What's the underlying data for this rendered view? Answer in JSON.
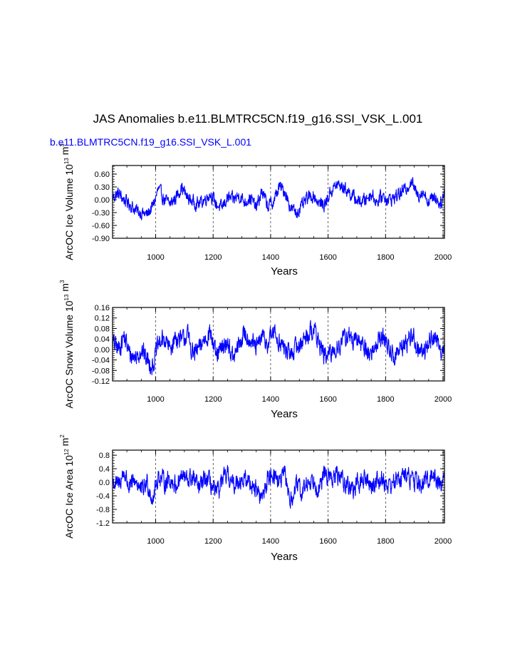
{
  "title": "JAS Anomalies b.e11.BLMTRC5CN.f19_g16.SSI_VSK_L.001",
  "subtitle": "b.e11.BLMTRC5CN.f19_g16.SSI_VSK_L.001",
  "colors": {
    "series": "#0000ff",
    "axis": "#000000",
    "grid": "#000000",
    "subtitle": "#0000ff"
  },
  "chart_data": [
    {
      "type": "line",
      "ylabel": "ArcOC Ice Volume 10^13 m^3",
      "xlabel": "Years",
      "xlim": [
        850,
        2005
      ],
      "ylim": [
        -0.9,
        0.8
      ],
      "xticks": [
        1000,
        1200,
        1400,
        1600,
        1800,
        2000
      ],
      "yticks": [
        -0.9,
        -0.6,
        -0.3,
        0.0,
        0.3,
        0.6
      ],
      "ytick_labels": [
        "-0.90",
        "-0.60",
        "-0.30",
        "0.00",
        "0.30",
        "0.60"
      ],
      "xgrid": "dashed",
      "series": [
        {
          "x": [
            850,
            870,
            890,
            910,
            930,
            950,
            970,
            990,
            1010,
            1030,
            1050,
            1070,
            1090,
            1110,
            1130,
            1150,
            1170,
            1190,
            1210,
            1230,
            1250,
            1270,
            1290,
            1310,
            1330,
            1350,
            1370,
            1390,
            1410,
            1430,
            1450,
            1470,
            1490,
            1510,
            1530,
            1550,
            1570,
            1590,
            1610,
            1630,
            1650,
            1670,
            1690,
            1710,
            1730,
            1750,
            1770,
            1790,
            1810,
            1830,
            1850,
            1870,
            1890,
            1910,
            1930,
            1950,
            1970,
            1990,
            2005
          ],
          "values": [
            0.05,
            0.15,
            0.0,
            -0.1,
            -0.25,
            -0.3,
            -0.35,
            -0.15,
            0.25,
            0.0,
            -0.1,
            0.05,
            0.3,
            0.05,
            -0.05,
            -0.1,
            0.0,
            0.15,
            -0.1,
            -0.2,
            0.05,
            0.0,
            0.1,
            -0.05,
            0.05,
            -0.2,
            0.2,
            -0.15,
            -0.05,
            0.3,
            0.2,
            -0.2,
            -0.3,
            -0.15,
            0.05,
            0.1,
            -0.1,
            -0.1,
            0.2,
            0.35,
            0.3,
            0.2,
            0.05,
            -0.05,
            0.0,
            0.15,
            -0.05,
            0.1,
            0.0,
            0.05,
            0.15,
            0.25,
            0.45,
            0.1,
            0.2,
            -0.05,
            0.1,
            -0.1,
            0.15
          ]
        }
      ]
    },
    {
      "type": "line",
      "ylabel": "ArcOC Snow Volume 10^13 m^3",
      "xlabel": "Years",
      "xlim": [
        850,
        2005
      ],
      "ylim": [
        -0.12,
        0.16
      ],
      "xticks": [
        1000,
        1200,
        1400,
        1600,
        1800,
        2000
      ],
      "yticks": [
        -0.12,
        -0.08,
        -0.04,
        0.0,
        0.04,
        0.08,
        0.12,
        0.16
      ],
      "ytick_labels": [
        "-0.12",
        "-0.08",
        "-0.04",
        "0.00",
        "0.04",
        "0.08",
        "0.12",
        "0.16"
      ],
      "xgrid": "dashed",
      "series": [
        {
          "x": [
            850,
            870,
            890,
            910,
            930,
            950,
            970,
            990,
            1010,
            1030,
            1050,
            1070,
            1090,
            1110,
            1130,
            1150,
            1170,
            1190,
            1210,
            1230,
            1250,
            1270,
            1290,
            1310,
            1330,
            1350,
            1370,
            1390,
            1410,
            1430,
            1450,
            1470,
            1490,
            1510,
            1530,
            1550,
            1570,
            1590,
            1610,
            1630,
            1650,
            1670,
            1690,
            1710,
            1730,
            1750,
            1770,
            1790,
            1810,
            1830,
            1850,
            1870,
            1890,
            1910,
            1930,
            1950,
            1970,
            1990,
            2005
          ],
          "values": [
            0.03,
            0.0,
            0.05,
            -0.02,
            -0.03,
            0.0,
            -0.04,
            -0.06,
            0.02,
            0.04,
            0.0,
            0.05,
            0.03,
            0.06,
            -0.02,
            0.0,
            0.04,
            0.07,
            -0.03,
            0.0,
            0.03,
            -0.04,
            0.02,
            0.06,
            0.04,
            0.0,
            0.05,
            0.02,
            0.07,
            0.03,
            0.0,
            -0.02,
            0.01,
            0.03,
            0.06,
            0.08,
            0.02,
            -0.03,
            -0.02,
            0.01,
            0.03,
            0.06,
            0.02,
            0.04,
            0.0,
            -0.02,
            0.03,
            0.05,
            0.01,
            -0.03,
            0.0,
            0.02,
            0.06,
            0.01,
            -0.02,
            0.03,
            0.05,
            0.0,
            0.02
          ]
        }
      ]
    },
    {
      "type": "line",
      "ylabel": "ArcOC Ice Area 10^12 m^2",
      "xlabel": "Years",
      "xlim": [
        850,
        2005
      ],
      "ylim": [
        -1.2,
        0.95
      ],
      "xticks": [
        1000,
        1200,
        1400,
        1600,
        1800,
        2000
      ],
      "yticks": [
        -1.2,
        -0.8,
        -0.4,
        0.0,
        0.4,
        0.8
      ],
      "ytick_labels": [
        "-1.2",
        "-0.8",
        "-0.4",
        "0.0",
        "0.4",
        "0.8"
      ],
      "xgrid": "dashed",
      "series": [
        {
          "x": [
            850,
            870,
            890,
            910,
            930,
            950,
            970,
            990,
            1010,
            1030,
            1050,
            1070,
            1090,
            1110,
            1130,
            1150,
            1170,
            1190,
            1210,
            1230,
            1250,
            1270,
            1290,
            1310,
            1330,
            1350,
            1370,
            1390,
            1410,
            1430,
            1450,
            1470,
            1490,
            1510,
            1530,
            1550,
            1570,
            1590,
            1610,
            1630,
            1650,
            1670,
            1690,
            1710,
            1730,
            1750,
            1770,
            1790,
            1810,
            1830,
            1850,
            1870,
            1890,
            1910,
            1930,
            1950,
            1970,
            1990,
            2005
          ],
          "values": [
            0.0,
            -0.1,
            0.3,
            -0.2,
            0.1,
            -0.3,
            0.0,
            -0.5,
            0.2,
            0.0,
            0.1,
            -0.1,
            0.2,
            0.05,
            0.15,
            -0.2,
            0.1,
            0.0,
            -0.4,
            0.0,
            0.2,
            -0.1,
            0.1,
            0.05,
            0.0,
            -0.2,
            -0.5,
            0.1,
            0.3,
            0.0,
            0.2,
            -0.6,
            -0.1,
            -0.3,
            0.0,
            0.1,
            -0.2,
            0.3,
            0.05,
            0.2,
            0.1,
            -0.1,
            -0.2,
            0.0,
            0.1,
            -0.1,
            0.05,
            0.1,
            -0.1,
            0.0,
            0.15,
            0.2,
            0.1,
            0.0,
            -0.1,
            0.15,
            0.2,
            -0.05,
            0.1
          ]
        }
      ]
    }
  ]
}
